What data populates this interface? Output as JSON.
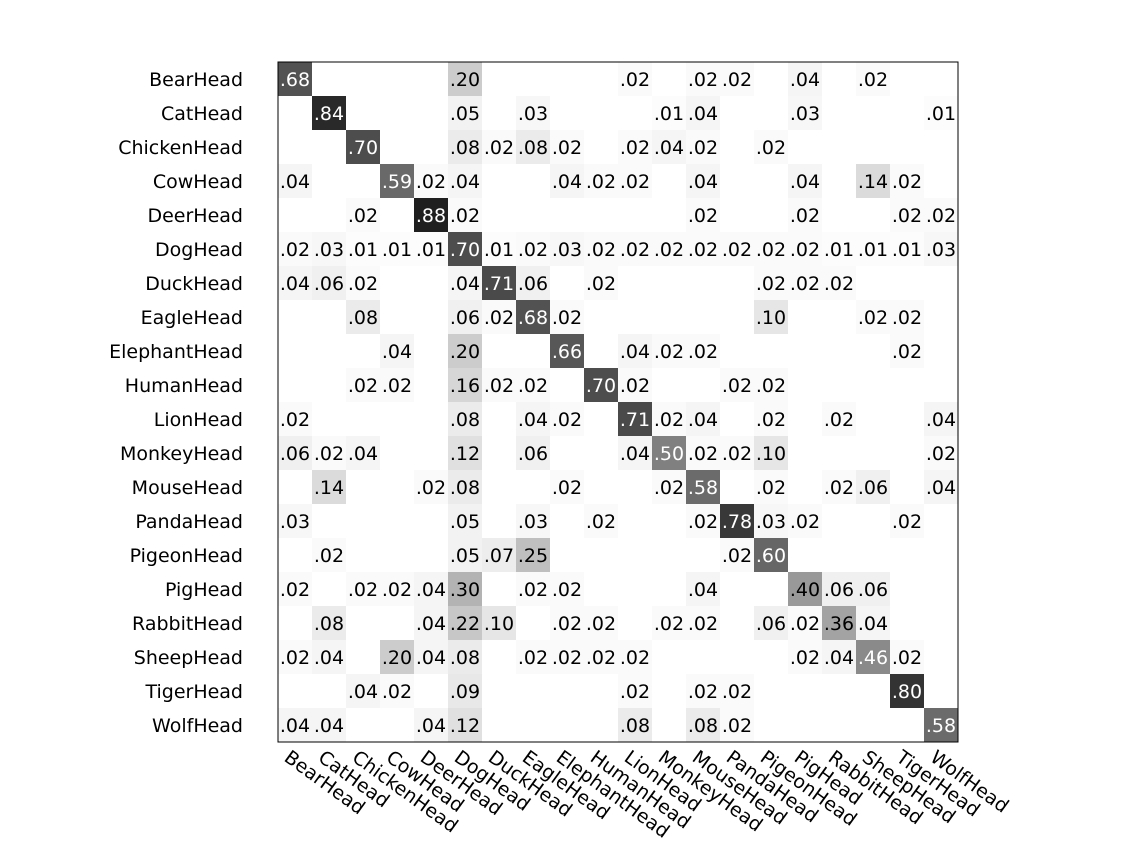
{
  "chart_data": {
    "type": "heatmap",
    "title": "",
    "xlabel": "",
    "ylabel": "",
    "categories": [
      "BearHead",
      "CatHead",
      "ChickenHead",
      "CowHead",
      "DeerHead",
      "DogHead",
      "DuckHead",
      "EagleHead",
      "ElephantHead",
      "HumanHead",
      "LionHead",
      "MonkeyHead",
      "MouseHead",
      "PandaHead",
      "PigeonHead",
      "PigHead",
      "RabbitHead",
      "SheepHead",
      "TigerHead",
      "WolfHead"
    ],
    "rows": [
      "BearHead",
      "CatHead",
      "ChickenHead",
      "CowHead",
      "DeerHead",
      "DogHead",
      "DuckHead",
      "EagleHead",
      "ElephantHead",
      "HumanHead",
      "LionHead",
      "MonkeyHead",
      "MouseHead",
      "PandaHead",
      "PigeonHead",
      "PigHead",
      "RabbitHead",
      "SheepHead",
      "TigerHead",
      "WolfHead"
    ],
    "columns": [
      "BearHead",
      "CatHead",
      "ChickenHead",
      "CowHead",
      "DeerHead",
      "DogHead",
      "DuckHead",
      "EagleHead",
      "ElephantHead",
      "HumanHead",
      "LionHead",
      "MonkeyHead",
      "MouseHead",
      "PandaHead",
      "PigeonHead",
      "PigHead",
      "RabbitHead",
      "SheepHead",
      "TigerHead",
      "WolfHead"
    ],
    "values": [
      [
        0.68,
        0,
        0,
        0,
        0,
        0.2,
        0,
        0,
        0,
        0,
        0.02,
        0,
        0.02,
        0.02,
        0,
        0.04,
        0,
        0.02,
        0,
        0
      ],
      [
        0,
        0.84,
        0,
        0,
        0,
        0.05,
        0,
        0.03,
        0,
        0,
        0,
        0.01,
        0.04,
        0,
        0,
        0.03,
        0,
        0,
        0,
        0.01
      ],
      [
        0,
        0,
        0.7,
        0,
        0,
        0.08,
        0.02,
        0.08,
        0.02,
        0,
        0.02,
        0.04,
        0.02,
        0,
        0.02,
        0,
        0,
        0,
        0,
        0
      ],
      [
        0.04,
        0,
        0,
        0.59,
        0.02,
        0.04,
        0,
        0,
        0.04,
        0.02,
        0.02,
        0,
        0.04,
        0,
        0,
        0.04,
        0,
        0.14,
        0.02,
        0
      ],
      [
        0,
        0,
        0.02,
        0,
        0.88,
        0.02,
        0,
        0,
        0,
        0,
        0,
        0,
        0.02,
        0,
        0,
        0.02,
        0,
        0,
        0.02,
        0.02
      ],
      [
        0.02,
        0.03,
        0.01,
        0.01,
        0.01,
        0.7,
        0.01,
        0.02,
        0.03,
        0.02,
        0.02,
        0.02,
        0.02,
        0.02,
        0.02,
        0.02,
        0.01,
        0.01,
        0.01,
        0.03
      ],
      [
        0.04,
        0.06,
        0.02,
        0,
        0,
        0.04,
        0.71,
        0.06,
        0,
        0.02,
        0,
        0,
        0,
        0,
        0.02,
        0.02,
        0.02,
        0,
        0,
        0
      ],
      [
        0,
        0,
        0.08,
        0,
        0,
        0.06,
        0.02,
        0.68,
        0.02,
        0,
        0,
        0,
        0,
        0,
        0.1,
        0,
        0,
        0.02,
        0.02,
        0
      ],
      [
        0,
        0,
        0,
        0.04,
        0,
        0.2,
        0,
        0,
        0.66,
        0,
        0.04,
        0.02,
        0.02,
        0,
        0,
        0,
        0,
        0,
        0.02,
        0
      ],
      [
        0,
        0,
        0.02,
        0.02,
        0,
        0.16,
        0.02,
        0.02,
        0,
        0.7,
        0.02,
        0,
        0,
        0.02,
        0.02,
        0,
        0,
        0,
        0,
        0
      ],
      [
        0.02,
        0,
        0,
        0,
        0,
        0.08,
        0,
        0.04,
        0.02,
        0,
        0.71,
        0.02,
        0.04,
        0,
        0.02,
        0,
        0.02,
        0,
        0,
        0.04
      ],
      [
        0.06,
        0.02,
        0.04,
        0,
        0,
        0.12,
        0,
        0.06,
        0,
        0,
        0.04,
        0.5,
        0.02,
        0.02,
        0.1,
        0,
        0,
        0,
        0,
        0.02
      ],
      [
        0,
        0.14,
        0,
        0,
        0.02,
        0.08,
        0,
        0,
        0.02,
        0,
        0,
        0.02,
        0.58,
        0,
        0.02,
        0,
        0.02,
        0.06,
        0,
        0.04
      ],
      [
        0.03,
        0,
        0,
        0,
        0,
        0.05,
        0,
        0.03,
        0,
        0.02,
        0,
        0,
        0.02,
        0.78,
        0.03,
        0.02,
        0,
        0,
        0.02,
        0
      ],
      [
        0,
        0.02,
        0,
        0,
        0,
        0.05,
        0.07,
        0.25,
        0,
        0,
        0,
        0,
        0,
        0.02,
        0.6,
        0,
        0,
        0,
        0,
        0
      ],
      [
        0.02,
        0,
        0.02,
        0.02,
        0.04,
        0.3,
        0,
        0.02,
        0.02,
        0,
        0,
        0,
        0.04,
        0,
        0,
        0.4,
        0.06,
        0.06,
        0,
        0
      ],
      [
        0,
        0.08,
        0,
        0,
        0.04,
        0.22,
        0.1,
        0,
        0.02,
        0.02,
        0,
        0.02,
        0.02,
        0,
        0.06,
        0.02,
        0.36,
        0.04,
        0,
        0
      ],
      [
        0.02,
        0.04,
        0,
        0.2,
        0.04,
        0.08,
        0,
        0.02,
        0.02,
        0.02,
        0.02,
        0,
        0,
        0,
        0,
        0.02,
        0.04,
        0.46,
        0.02,
        0
      ],
      [
        0,
        0,
        0.04,
        0.02,
        0,
        0.09,
        0,
        0,
        0,
        0,
        0.02,
        0,
        0.02,
        0.02,
        0,
        0,
        0,
        0,
        0.8,
        0
      ],
      [
        0.04,
        0.04,
        0,
        0,
        0.04,
        0.12,
        0,
        0,
        0,
        0,
        0.08,
        0,
        0.08,
        0.02,
        0,
        0,
        0,
        0,
        0,
        0.58
      ]
    ],
    "value_range": [
      0,
      1
    ],
    "colormap": "gray_reversed",
    "grid": false,
    "legend": "none"
  }
}
